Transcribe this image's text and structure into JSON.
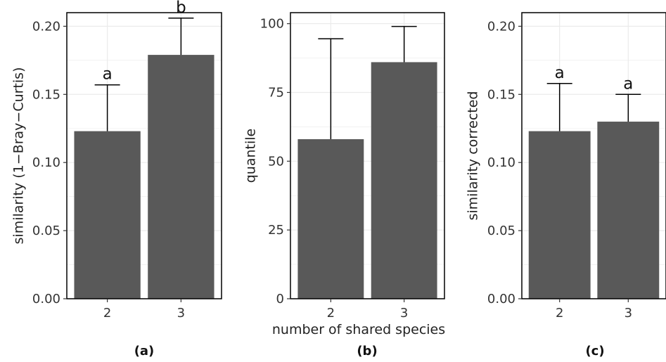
{
  "shared_xlabel": "number of shared species",
  "colors": {
    "bar": "#595959",
    "grid": "#ebebeb",
    "border": "#000000",
    "errorbar": "#000000"
  },
  "chart_data": [
    {
      "type": "bar",
      "panel_label": "(a)",
      "categories": [
        "2",
        "3"
      ],
      "values": [
        0.123,
        0.179
      ],
      "error_upper": [
        0.157,
        0.206
      ],
      "annotations": [
        "a",
        "b"
      ],
      "ylabel": "similarity (1−Bray−Curtis)",
      "ylim": [
        0,
        0.21
      ],
      "yticks": [
        0,
        0.05,
        0.1,
        0.15,
        0.2
      ],
      "ytick_labels": [
        "0.00",
        "0.05",
        "0.10",
        "0.15",
        "0.20"
      ],
      "grid": true
    },
    {
      "type": "bar",
      "panel_label": "(b)",
      "categories": [
        "2",
        "3"
      ],
      "values": [
        58,
        86
      ],
      "error_upper": [
        94.5,
        99
      ],
      "annotations": [],
      "ylabel": "quantile",
      "ylim": [
        0,
        104
      ],
      "yticks": [
        0,
        25,
        50,
        75,
        100
      ],
      "ytick_labels": [
        "0",
        "25",
        "50",
        "75",
        "100"
      ],
      "grid": true
    },
    {
      "type": "bar",
      "panel_label": "(c)",
      "categories": [
        "2",
        "3"
      ],
      "values": [
        0.123,
        0.13
      ],
      "error_upper": [
        0.158,
        0.15
      ],
      "annotations": [
        "a",
        "a"
      ],
      "ylabel": "similarity corrected",
      "ylim": [
        0,
        0.21
      ],
      "yticks": [
        0,
        0.05,
        0.1,
        0.15,
        0.2
      ],
      "ytick_labels": [
        "0.00",
        "0.05",
        "0.10",
        "0.15",
        "0.20"
      ],
      "grid": true
    }
  ]
}
